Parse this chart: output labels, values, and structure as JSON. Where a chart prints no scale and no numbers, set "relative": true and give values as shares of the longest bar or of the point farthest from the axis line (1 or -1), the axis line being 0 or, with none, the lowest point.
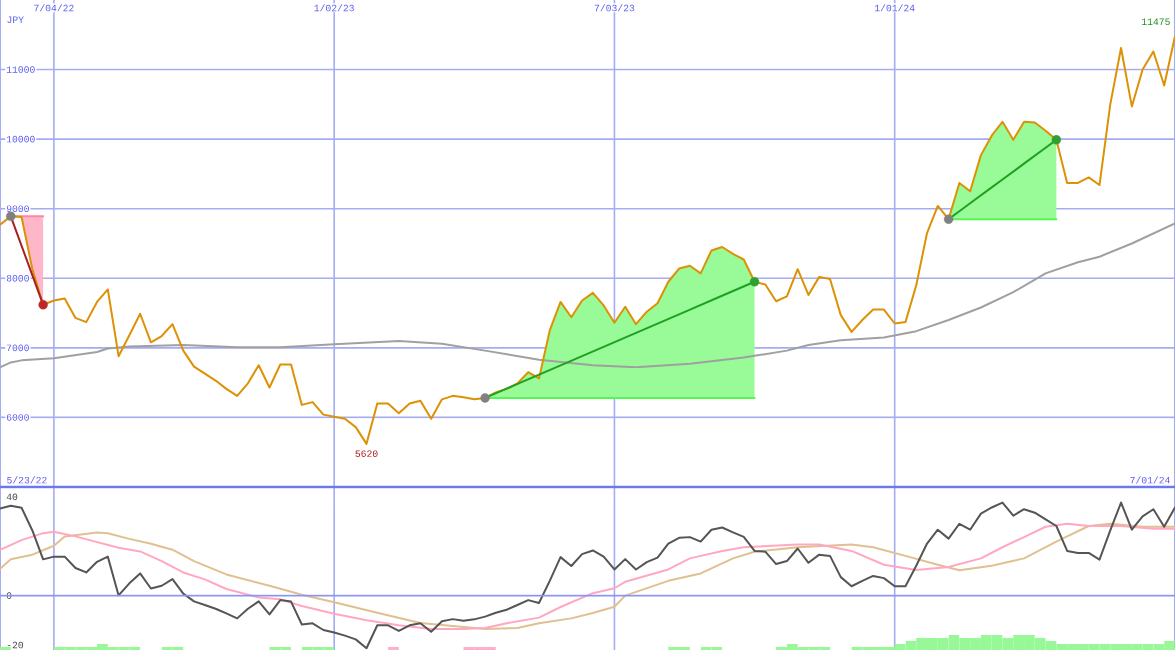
{
  "chart_data": [
    {
      "type": "line",
      "ylabel": "JPY",
      "x": [
        "2022-05-30",
        "2022-06-06",
        "2022-06-13",
        "2022-06-20",
        "2022-06-27",
        "2022-07-04",
        "2022-07-11",
        "2022-07-18",
        "2022-07-25",
        "2022-08-01",
        "2022-08-08",
        "2022-08-15",
        "2022-08-22",
        "2022-08-29",
        "2022-09-05",
        "2022-09-12",
        "2022-09-19",
        "2022-09-26",
        "2022-10-03",
        "2022-10-10",
        "2022-10-17",
        "2022-10-24",
        "2022-10-31",
        "2022-11-07",
        "2022-11-14",
        "2022-11-21",
        "2022-11-28",
        "2022-12-05",
        "2022-12-12",
        "2022-12-19",
        "2022-12-26",
        "2023-01-02",
        "2023-01-09",
        "2023-01-16",
        "2023-01-23",
        "2023-01-30",
        "2023-02-06",
        "2023-02-13",
        "2023-02-20",
        "2023-02-27",
        "2023-03-06",
        "2023-03-13",
        "2023-03-20",
        "2023-03-27",
        "2023-04-03",
        "2023-04-10",
        "2023-04-17",
        "2023-04-24",
        "2023-05-01",
        "2023-05-08",
        "2023-05-15",
        "2023-05-22",
        "2023-05-29",
        "2023-06-05",
        "2023-06-12",
        "2023-06-19",
        "2023-06-26",
        "2023-07-03",
        "2023-07-10",
        "2023-07-17",
        "2023-07-24",
        "2023-07-31",
        "2023-08-07",
        "2023-08-14",
        "2023-08-21",
        "2023-08-28",
        "2023-09-04",
        "2023-09-11",
        "2023-09-18",
        "2023-09-25",
        "2023-10-02",
        "2023-10-09",
        "2023-10-16",
        "2023-10-23",
        "2023-10-30",
        "2023-11-06",
        "2023-11-13",
        "2023-11-20",
        "2023-11-27",
        "2023-12-04",
        "2023-12-11",
        "2023-12-18",
        "2023-12-25",
        "2024-01-01",
        "2024-01-08",
        "2024-01-15",
        "2024-01-22",
        "2024-01-29",
        "2024-02-05",
        "2024-02-12",
        "2024-02-19",
        "2024-02-26",
        "2024-03-04",
        "2024-03-11",
        "2024-03-18",
        "2024-03-25",
        "2024-04-01",
        "2024-04-08",
        "2024-04-15",
        "2024-04-22",
        "2024-04-29",
        "2024-05-06",
        "2024-05-13",
        "2024-05-20",
        "2024-05-27",
        "2024-06-03",
        "2024-06-10",
        "2024-06-17",
        "2024-06-24",
        "2024-07-01"
      ],
      "xlim": [
        "2022-05-30",
        "2024-07-01"
      ],
      "xticks": [
        {
          "value": "2022-07-04",
          "label": "7/04/22"
        },
        {
          "value": "2023-01-02",
          "label": "1/02/23"
        },
        {
          "value": "2023-07-03",
          "label": "7/03/23"
        },
        {
          "value": "2024-01-01",
          "label": "1/01/24"
        }
      ],
      "ylim": [
        5000,
        12000
      ],
      "yticks": [
        6000,
        7000,
        8000,
        9000,
        10000,
        11000
      ],
      "grid": true,
      "series": [
        {
          "color": "#ff85a3",
          "x": [
            "2022-06-06",
            "2022-06-13",
            "2022-06-20",
            "2022-06-27"
          ],
          "values": [
            8890,
            8890,
            8890,
            8890
          ],
          "lower": [
            8890,
            8880,
            8130,
            7620
          ],
          "upper": [
            8890,
            8890,
            8890,
            8890
          ]
        },
        {
          "color": "#53f853",
          "x": [
            "2023-04-10",
            "2023-04-17",
            "2023-04-24",
            "2023-05-01",
            "2023-05-08",
            "2023-05-15",
            "2023-05-22",
            "2023-05-29",
            "2023-06-05",
            "2023-06-12",
            "2023-06-19",
            "2023-06-26",
            "2023-07-03",
            "2023-07-10",
            "2023-07-17",
            "2023-07-24",
            "2023-07-31",
            "2023-08-07",
            "2023-08-14",
            "2023-08-21",
            "2023-08-28",
            "2023-09-04",
            "2023-09-11",
            "2023-09-18",
            "2023-09-25",
            "2023-10-02"
          ],
          "values": [
            6280,
            6280,
            6280,
            6280,
            6280,
            6280,
            6280,
            6280,
            6280,
            6280,
            6280,
            6280,
            6280,
            6280,
            6280,
            6280,
            6280,
            6280,
            6280,
            6280,
            6280,
            6280,
            6280,
            6280,
            6280,
            6280
          ],
          "lower": [
            6280,
            6280,
            6280,
            6280,
            6280,
            6280,
            6280,
            6280,
            6280,
            6280,
            6280,
            6280,
            6280,
            6280,
            6280,
            6280,
            6280,
            6280,
            6280,
            6280,
            6280,
            6280,
            6280,
            6280,
            6280,
            6280
          ],
          "upper": [
            6280,
            6360,
            6410,
            6490,
            6650,
            6560,
            7250,
            7660,
            7440,
            7680,
            7790,
            7610,
            7360,
            7590,
            7340,
            7520,
            7640,
            7950,
            8140,
            8180,
            8070,
            8400,
            8450,
            8350,
            8270,
            7950
          ]
        },
        {
          "color": "#53f853",
          "x": [
            "2024-02-05",
            "2024-02-12",
            "2024-02-19",
            "2024-02-26",
            "2024-03-04",
            "2024-03-11",
            "2024-03-18",
            "2024-03-25",
            "2024-04-01",
            "2024-04-08",
            "2024-04-15"
          ],
          "values": [
            8850,
            8850,
            8850,
            8850,
            8850,
            8850,
            8850,
            8850,
            8850,
            8850,
            8850
          ],
          "lower": [
            8850,
            8850,
            8850,
            8850,
            8850,
            8850,
            8850,
            8850,
            8850,
            8850,
            8850
          ],
          "upper": [
            8850,
            9370,
            9250,
            9770,
            10050,
            10250,
            9990,
            10250,
            10240,
            10120,
            9990
          ]
        },
        {
          "color": "#a0a0a0",
          "x": [
            "2022-05-30",
            "2022-06-06",
            "2022-06-13",
            "2022-07-04",
            "2022-08-01",
            "2022-08-08",
            "2022-08-22",
            "2022-09-26",
            "2022-10-31",
            "2022-11-28",
            "2023-01-02",
            "2023-02-13",
            "2023-03-13",
            "2023-04-10",
            "2023-05-15",
            "2023-06-19",
            "2023-07-17",
            "2023-08-21",
            "2023-09-25",
            "2023-10-23",
            "2023-11-06",
            "2023-11-27",
            "2023-12-25",
            "2024-01-15",
            "2024-02-05",
            "2024-02-26",
            "2024-03-18",
            "2024-04-08",
            "2024-04-29",
            "2024-05-13",
            "2024-06-03",
            "2024-07-01"
          ],
          "values": [
            6720,
            6790,
            6820,
            6850,
            6940,
            6990,
            7020,
            7040,
            7010,
            7010,
            7050,
            7100,
            7060,
            6960,
            6830,
            6750,
            6720,
            6770,
            6860,
            6960,
            7040,
            7110,
            7150,
            7240,
            7400,
            7580,
            7800,
            8070,
            8230,
            8310,
            8500,
            8790
          ]
        },
        {
          "color": "#dd9105",
          "values": [
            8770,
            8890,
            8880,
            8130,
            7620,
            7680,
            7710,
            7430,
            7370,
            7660,
            7840,
            6880,
            7180,
            7490,
            7080,
            7170,
            7340,
            6960,
            6730,
            6630,
            6530,
            6410,
            6310,
            6490,
            6750,
            6430,
            6760,
            6760,
            6180,
            6220,
            6040,
            6010,
            5980,
            5860,
            5620,
            6200,
            6200,
            6060,
            6200,
            6240,
            5980,
            6260,
            6310,
            6290,
            6260,
            6280,
            6360,
            6410,
            6490,
            6650,
            6560,
            7250,
            7660,
            7440,
            7680,
            7790,
            7610,
            7360,
            7590,
            7340,
            7520,
            7640,
            7950,
            8140,
            8180,
            8070,
            8400,
            8450,
            8350,
            8270,
            7950,
            7910,
            7670,
            7740,
            8130,
            7760,
            8020,
            7990,
            7470,
            7230,
            7400,
            7550,
            7550,
            7350,
            7370,
            7900,
            8650,
            9040,
            8850,
            9370,
            9250,
            9770,
            10050,
            10250,
            9990,
            10250,
            10240,
            10120,
            9990,
            9370,
            9370,
            9450,
            9340,
            10500,
            11310,
            10470,
            11000,
            11260,
            10770,
            11475
          ]
        },
        {
          "color": "#a52020",
          "x": [
            "2022-06-06",
            "2022-06-27"
          ],
          "values": [
            8890,
            7620
          ]
        },
        {
          "color": "#20a020",
          "x": [
            "2023-04-10",
            "2023-10-02"
          ],
          "values": [
            6280,
            7950
          ]
        },
        {
          "color": "#20a020",
          "x": [
            "2024-02-05",
            "2024-04-15"
          ],
          "values": [
            8850,
            9990
          ]
        },
        {
          "type": "scatter",
          "marker": "circle",
          "color": "#808080",
          "x": [
            "2022-06-06",
            "2023-04-10",
            "2024-02-05"
          ],
          "values": [
            8890,
            6280,
            8850
          ]
        },
        {
          "type": "scatter",
          "marker": "circle",
          "color": "#c02828",
          "x": [
            "2022-06-27"
          ],
          "values": [
            7620
          ]
        },
        {
          "type": "scatter",
          "marker": "circle",
          "color": "#30a030",
          "x": [
            "2023-10-02",
            "2024-04-15"
          ],
          "values": [
            7950,
            9990
          ]
        }
      ],
      "annotations": [
        "5/23/22",
        "7/01/24",
        {
          "text": "5620",
          "x": "2023-01-23",
          "y": 5620
        },
        {
          "text": "11475",
          "x": "2024-07-01",
          "y": 11475
        }
      ]
    },
    {
      "type": "line",
      "x": [
        "2022-05-30",
        "2022-06-06",
        "2022-06-13",
        "2022-06-20",
        "2022-06-27",
        "2022-07-04",
        "2022-07-11",
        "2022-07-18",
        "2022-07-25",
        "2022-08-01",
        "2022-08-08",
        "2022-08-15",
        "2022-08-22",
        "2022-08-29",
        "2022-09-05",
        "2022-09-12",
        "2022-09-19",
        "2022-09-26",
        "2022-10-03",
        "2022-10-10",
        "2022-10-17",
        "2022-10-24",
        "2022-10-31",
        "2022-11-07",
        "2022-11-14",
        "2022-11-21",
        "2022-11-28",
        "2022-12-05",
        "2022-12-12",
        "2022-12-19",
        "2022-12-26",
        "2023-01-02",
        "2023-01-09",
        "2023-01-16",
        "2023-01-23",
        "2023-01-30",
        "2023-02-06",
        "2023-02-13",
        "2023-02-20",
        "2023-02-27",
        "2023-03-06",
        "2023-03-13",
        "2023-03-20",
        "2023-03-27",
        "2023-04-03",
        "2023-04-10",
        "2023-04-17",
        "2023-04-24",
        "2023-05-01",
        "2023-05-08",
        "2023-05-15",
        "2023-05-22",
        "2023-05-29",
        "2023-06-05",
        "2023-06-12",
        "2023-06-19",
        "2023-06-26",
        "2023-07-03",
        "2023-07-10",
        "2023-07-17",
        "2023-07-24",
        "2023-07-31",
        "2023-08-07",
        "2023-08-14",
        "2023-08-21",
        "2023-08-28",
        "2023-09-04",
        "2023-09-11",
        "2023-09-18",
        "2023-09-25",
        "2023-10-02",
        "2023-10-09",
        "2023-10-16",
        "2023-10-23",
        "2023-10-30",
        "2023-11-06",
        "2023-11-13",
        "2023-11-20",
        "2023-11-27",
        "2023-12-04",
        "2023-12-11",
        "2023-12-18",
        "2023-12-25",
        "2024-01-01",
        "2024-01-08",
        "2024-01-15",
        "2024-01-22",
        "2024-01-29",
        "2024-02-05",
        "2024-02-12",
        "2024-02-19",
        "2024-02-26",
        "2024-03-04",
        "2024-03-11",
        "2024-03-18",
        "2024-03-25",
        "2024-04-01",
        "2024-04-08",
        "2024-04-15",
        "2024-04-22",
        "2024-04-29",
        "2024-05-06",
        "2024-05-13",
        "2024-05-20",
        "2024-05-27",
        "2024-06-03",
        "2024-06-10",
        "2024-06-17",
        "2024-06-24",
        "2024-07-01"
      ],
      "xlim": [
        "2022-05-30",
        "2024-07-01"
      ],
      "xticks": [
        {
          "value": "2022-07-04",
          "label": null
        },
        {
          "value": "2023-01-02",
          "label": null
        },
        {
          "value": "2023-07-03",
          "label": null
        },
        {
          "value": "2024-01-01",
          "label": null
        }
      ],
      "ylim": [
        -22,
        44
      ],
      "yticks": [
        -20,
        0,
        40
      ],
      "grid": "x",
      "tick_labels": "y",
      "ref_lines": [
        {
          "axis": "y",
          "value": 0,
          "color": "#8a94f2"
        }
      ],
      "series": [
        {
          "color": "#e0c090",
          "x": [
            "2022-05-30",
            "2022-06-06",
            "2022-06-20",
            "2022-07-04",
            "2022-07-11",
            "2022-08-01",
            "2022-08-08",
            "2022-08-22",
            "2022-09-05",
            "2022-09-19",
            "2022-10-03",
            "2022-10-24",
            "2022-11-21",
            "2022-12-12",
            "2023-01-02",
            "2023-01-30",
            "2023-02-27",
            "2023-03-20",
            "2023-04-10",
            "2023-05-01",
            "2023-05-15",
            "2023-06-05",
            "2023-06-19",
            "2023-07-03",
            "2023-07-10",
            "2023-08-07",
            "2023-08-28",
            "2023-09-18",
            "2023-10-02",
            "2023-10-30",
            "2023-12-04",
            "2023-12-18",
            "2024-01-08",
            "2024-01-29",
            "2024-02-12",
            "2024-03-04",
            "2024-03-25",
            "2024-04-15",
            "2024-05-06",
            "2024-05-20",
            "2024-06-10",
            "2024-07-01"
          ],
          "values": [
            10.9,
            14.7,
            16.6,
            20.2,
            24.0,
            25.6,
            25.3,
            23.0,
            21.0,
            18.6,
            14.0,
            8.6,
            4.0,
            0.4,
            -2.7,
            -6.9,
            -11.1,
            -12.3,
            -13.5,
            -13.1,
            -11.2,
            -9.2,
            -7.0,
            -4.5,
            0.0,
            6.0,
            9.0,
            15.1,
            17.8,
            19.6,
            20.7,
            19.6,
            16.1,
            12.5,
            10.3,
            12.1,
            15.1,
            21.9,
            28.2,
            29.1,
            27.9,
            27.9
          ]
        },
        {
          "color": "#ffa8c0",
          "x": [
            "2022-05-30",
            "2022-06-13",
            "2022-06-27",
            "2022-07-04",
            "2022-07-18",
            "2022-08-15",
            "2022-08-29",
            "2022-09-12",
            "2022-09-26",
            "2022-10-10",
            "2022-10-24",
            "2022-11-14",
            "2022-11-28",
            "2022-12-12",
            "2023-01-02",
            "2023-01-23",
            "2023-02-13",
            "2023-03-06",
            "2023-03-27",
            "2023-04-10",
            "2023-04-24",
            "2023-05-15",
            "2023-05-29",
            "2023-06-19",
            "2023-07-03",
            "2023-07-10",
            "2023-08-07",
            "2023-08-21",
            "2023-09-11",
            "2023-09-25",
            "2023-10-30",
            "2023-11-13",
            "2023-12-04",
            "2023-12-25",
            "2024-01-15",
            "2024-02-05",
            "2024-02-26",
            "2024-03-11",
            "2024-03-25",
            "2024-04-08",
            "2024-04-22",
            "2024-05-06",
            "2024-05-27",
            "2024-06-17",
            "2024-07-01"
          ],
          "values": [
            18.6,
            22.5,
            25.3,
            25.9,
            24.0,
            19.4,
            17.9,
            14.0,
            9.4,
            6.6,
            2.7,
            -0.7,
            -1.5,
            -4.2,
            -7.3,
            -10.0,
            -12.0,
            -13.5,
            -13.5,
            -13.1,
            -11.2,
            -8.9,
            -4.6,
            1.0,
            3.0,
            5.6,
            10.6,
            15.1,
            18.1,
            19.6,
            20.7,
            20.7,
            18.1,
            12.5,
            10.4,
            11.6,
            15.1,
            19.6,
            23.7,
            27.9,
            29.1,
            28.2,
            28.2,
            27.1,
            27.1
          ]
        },
        {
          "color": "#555555",
          "values": [
            35.3,
            36.4,
            35.6,
            26.4,
            14.7,
            15.8,
            15.8,
            11.2,
            9.4,
            13.7,
            15.8,
            0.1,
            5.0,
            9.0,
            2.9,
            4.0,
            6.7,
            0.8,
            -2.3,
            -3.8,
            -5.3,
            -7.2,
            -9.2,
            -5.3,
            -2.3,
            -7.6,
            -1.8,
            -2.4,
            -11.7,
            -11.2,
            -13.9,
            -14.9,
            -16.2,
            -17.7,
            -21.3,
            -12.0,
            -12.0,
            -14.3,
            -12.0,
            -11.2,
            -14.6,
            -10.4,
            -9.5,
            -10.2,
            -9.6,
            -8.5,
            -6.9,
            -5.7,
            -3.8,
            -1.8,
            -3.0,
            6.0,
            15.6,
            12.0,
            16.8,
            18.3,
            15.8,
            10.6,
            14.8,
            10.6,
            13.6,
            15.4,
            21.1,
            23.4,
            23.7,
            21.9,
            26.7,
            27.6,
            25.6,
            23.8,
            18.1,
            17.8,
            12.8,
            14.0,
            19.1,
            13.3,
            16.6,
            16.1,
            7.5,
            3.8,
            6.0,
            8.0,
            7.1,
            3.8,
            3.8,
            12.1,
            21.1,
            26.7,
            23.1,
            29.1,
            26.7,
            33.2,
            35.7,
            37.7,
            32.4,
            35.0,
            33.6,
            30.9,
            28.2,
            18.1,
            17.3,
            17.3,
            14.6,
            26.4,
            37.7,
            26.7,
            32.1,
            35.0,
            27.9,
            35.7
          ]
        }
      ]
    },
    {
      "type": "bar",
      "relative": true,
      "xlim": [
        "2022-05-30",
        "2024-07-01"
      ],
      "x": [
        "2022-06-02T12:00",
        "2022-07-07T12:00",
        "2022-07-14T12:00",
        "2022-07-21T12:00",
        "2022-07-28T12:00",
        "2022-08-04T12:00",
        "2022-08-11T12:00",
        "2022-08-18T12:00",
        "2022-08-25T12:00",
        "2022-09-15T12:00",
        "2022-09-22T12:00",
        "2022-11-24T12:00",
        "2022-12-01T12:00",
        "2022-12-15T12:00",
        "2022-12-22T12:00",
        "2022-12-29T12:00",
        "2023-02-09T12:00",
        "2023-03-30T12:00",
        "2023-04-06T12:00",
        "2023-04-13T12:00",
        "2023-08-10T12:00",
        "2023-08-17T12:00",
        "2023-08-31T12:00",
        "2023-09-07T12:00",
        "2023-10-19T12:00",
        "2023-10-26T12:00",
        "2023-11-02T12:00",
        "2023-11-09T12:00",
        "2023-11-16T12:00",
        "2023-12-07T12:00",
        "2023-12-14T12:00",
        "2023-12-21T12:00",
        "2023-12-28T12:00",
        "2024-01-04T12:00",
        "2024-01-11T12:00",
        "2024-01-18T12:00",
        "2024-01-25T12:00",
        "2024-02-01T12:00",
        "2024-02-08T12:00",
        "2024-02-15T12:00",
        "2024-02-22T12:00",
        "2024-02-29T12:00",
        "2024-03-07T12:00",
        "2024-03-14T12:00",
        "2024-03-21T12:00",
        "2024-03-28T12:00",
        "2024-04-04T12:00",
        "2024-04-11T12:00",
        "2024-04-18T12:00",
        "2024-04-25T12:00",
        "2024-05-02T12:00",
        "2024-05-09T12:00",
        "2024-05-16T12:00",
        "2024-05-23T12:00",
        "2024-05-30T12:00",
        "2024-06-06T12:00",
        "2024-06-13T12:00",
        "2024-06-20T12:00",
        "2024-06-27T12:00"
      ],
      "values": [
        0.2,
        0.2,
        0.2,
        0.2,
        0.2,
        0.4,
        0.2,
        0.2,
        0.2,
        0.2,
        0.2,
        0.2,
        0.2,
        0.2,
        0.2,
        0.2,
        0.2,
        0.2,
        0.2,
        0.2,
        0.2,
        0.2,
        0.2,
        0.2,
        0.2,
        0.4,
        0.2,
        0.2,
        0.2,
        0.2,
        0.2,
        0.2,
        0.2,
        0.4,
        0.6,
        0.8,
        0.8,
        0.8,
        1.0,
        0.8,
        0.8,
        1.0,
        1.0,
        0.8,
        1.0,
        1.0,
        0.8,
        0.6,
        0.4,
        0.4,
        0.4,
        0.4,
        0.4,
        0.4,
        0.4,
        0.4,
        0.4,
        0.4,
        0.6
      ],
      "colors": [
        "#98f898",
        "#98f898",
        "#98f898",
        "#98f898",
        "#98f898",
        "#98f898",
        "#98f898",
        "#98f898",
        "#98f898",
        "#98f898",
        "#98f898",
        "#98f898",
        "#98f898",
        "#98f898",
        "#98f898",
        "#98f898",
        "#ffb0c8",
        "#ffb0c8",
        "#ffb0c8",
        "#ffb0c8",
        "#98f898",
        "#98f898",
        "#98f898",
        "#98f898",
        "#98f898",
        "#98f898",
        "#98f898",
        "#98f898",
        "#98f898",
        "#98f898",
        "#98f898",
        "#98f898",
        "#98f898",
        "#98f898",
        "#98f898",
        "#98f898",
        "#98f898",
        "#98f898",
        "#98f898",
        "#98f898",
        "#98f898",
        "#98f898",
        "#98f898",
        "#98f898",
        "#98f898",
        "#98f898",
        "#98f898",
        "#98f898",
        "#98f898",
        "#98f898",
        "#98f898",
        "#98f898",
        "#98f898",
        "#98f898",
        "#98f898",
        "#98f898",
        "#98f898",
        "#98f898",
        "#98f898"
      ]
    }
  ]
}
